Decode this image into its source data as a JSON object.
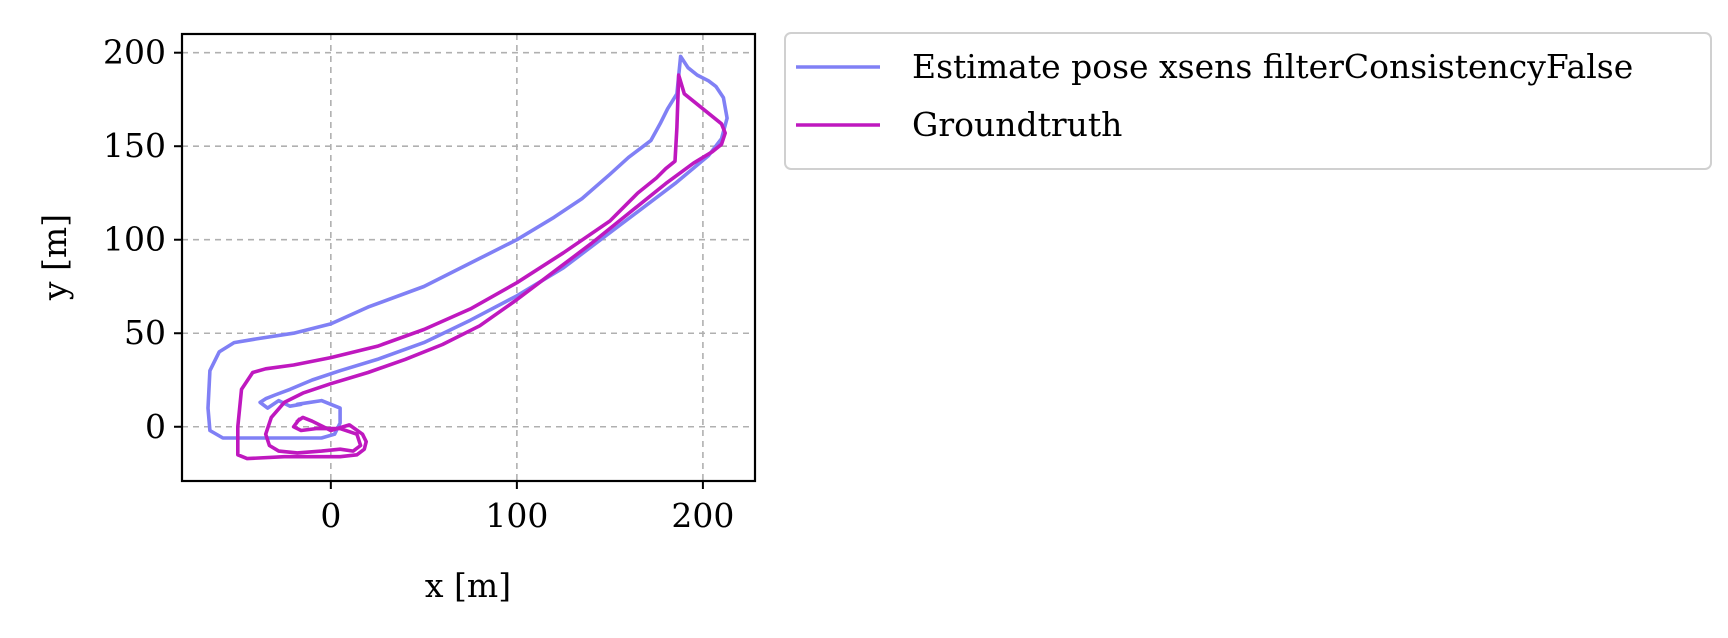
{
  "chart_data": {
    "type": "line",
    "title": "",
    "xlabel": "x [m]",
    "ylabel": "y [m]",
    "xlim": [
      -80,
      228
    ],
    "ylim": [
      -29,
      210
    ],
    "xticks": [
      0,
      100,
      200
    ],
    "yticks": [
      0,
      50,
      100,
      150,
      200
    ],
    "grid": true,
    "legend_position": "outside-right-top",
    "series": [
      {
        "name": "Estimate pose xsens filterConsistencyFalse",
        "color": "#8080f5",
        "x": [
          -18,
          -5,
          5,
          5,
          2,
          -5,
          -15,
          -25,
          -35,
          -40,
          -58,
          -65,
          -66,
          -65,
          -60,
          -52,
          -40,
          -20,
          0,
          20,
          50,
          80,
          100,
          120,
          135,
          150,
          160,
          168,
          172,
          177,
          181,
          186,
          188,
          192,
          197,
          203,
          207,
          211,
          213,
          210,
          203,
          185,
          165,
          145,
          125,
          100,
          75,
          50,
          25,
          5,
          -10,
          -22,
          -30,
          -35,
          -38,
          -34,
          -28,
          -22,
          -16
        ],
        "y": [
          12,
          14,
          10,
          2,
          -4,
          -6,
          -6,
          -6,
          -6,
          -6,
          -6,
          -2,
          10,
          30,
          40,
          45,
          47,
          50,
          55,
          64,
          75,
          90,
          100,
          112,
          122,
          135,
          144,
          150,
          153,
          162,
          170,
          178,
          198,
          192,
          188,
          185,
          182,
          176,
          165,
          154,
          145,
          130,
          115,
          100,
          85,
          70,
          57,
          45,
          36,
          30,
          25,
          20,
          17,
          15,
          13,
          10,
          14,
          11,
          12
        ]
      },
      {
        "name": "Groundtruth",
        "color": "#bf18bf",
        "x": [
          -18,
          -15,
          -10,
          0,
          10,
          17,
          19,
          18,
          14,
          5,
          -10,
          -25,
          -45,
          -50,
          -50,
          -48,
          -42,
          -35,
          -20,
          0,
          25,
          50,
          75,
          100,
          125,
          150,
          165,
          175,
          180,
          185,
          186,
          187,
          190,
          195,
          200,
          205,
          210,
          212,
          210,
          205,
          195,
          180,
          160,
          140,
          120,
          100,
          80,
          60,
          40,
          20,
          0,
          -15,
          -25,
          -32,
          -35,
          -33,
          -28,
          -18,
          -5,
          5,
          12,
          16,
          14,
          5,
          -8,
          -16,
          -20,
          -17
        ],
        "y": [
          3,
          5,
          3,
          -2,
          1,
          -4,
          -8,
          -12,
          -15,
          -16,
          -16,
          -16,
          -17,
          -15,
          0,
          20,
          29,
          31,
          33,
          37,
          43,
          52,
          63,
          77,
          93,
          110,
          125,
          133,
          138,
          142,
          160,
          188,
          178,
          174,
          170,
          166,
          162,
          157,
          151,
          147,
          141,
          130,
          114,
          98,
          83,
          68,
          54,
          44,
          36,
          29,
          23,
          18,
          13,
          5,
          -4,
          -10,
          -13,
          -14,
          -13,
          -12,
          -13,
          -10,
          -4,
          -1,
          -1,
          -2,
          0,
          4
        ]
      }
    ]
  }
}
